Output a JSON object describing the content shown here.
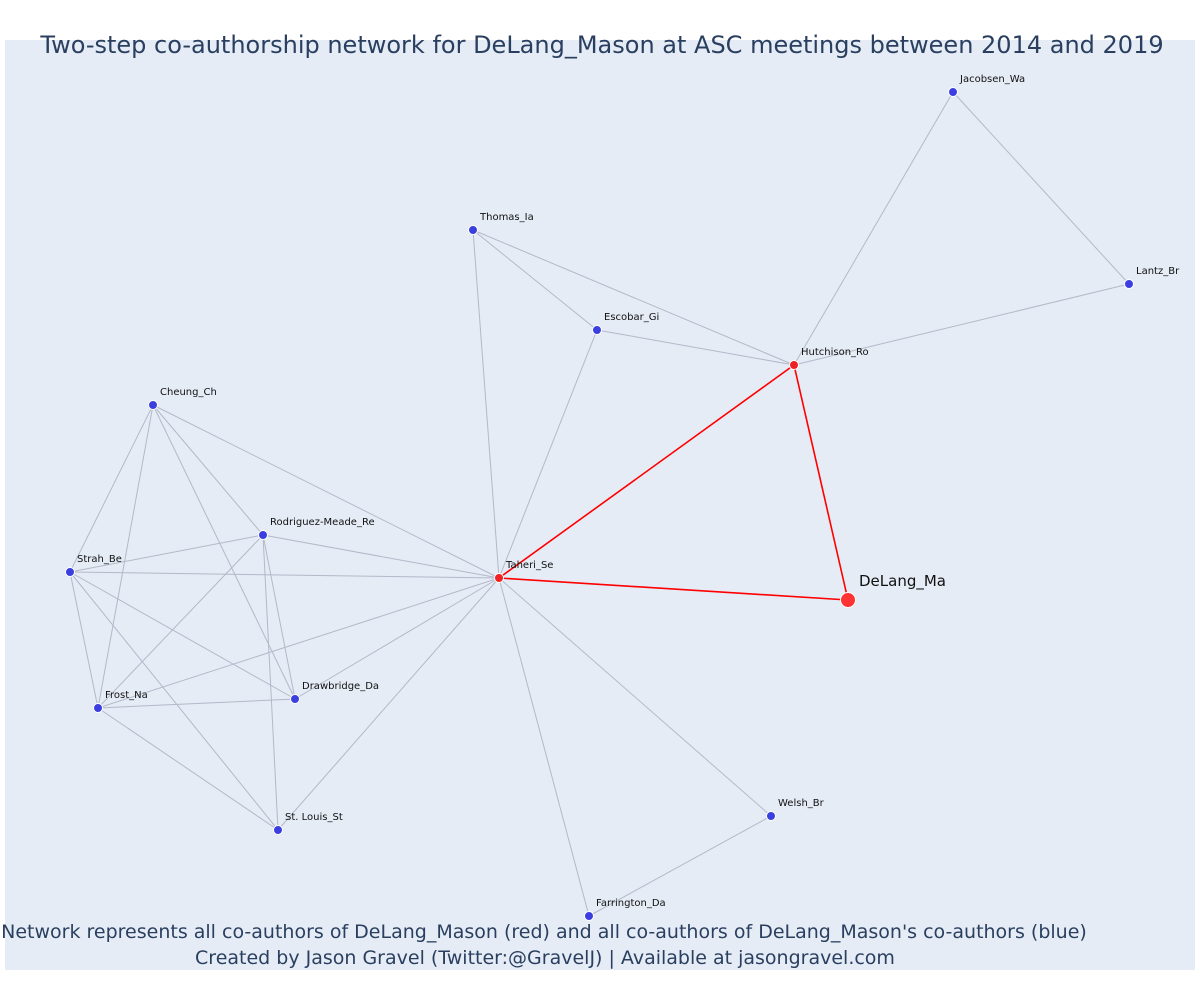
{
  "title": "Two-step co-authorship network for DeLang_Mason at ASC meetings between 2014 and 2019",
  "caption_line1": "Network represents all co-authors of DeLang_Mason (red) and all co-authors of DeLang_Mason's co-authors (blue)",
  "caption_line2": "Created by Jason Gravel (Twitter:@GravelJ) | Available at jasongravel.com",
  "colors": {
    "background": "#e5ecf6",
    "focus_node": "#ff3333",
    "direct_coauthor_node": "#ee2222",
    "indirect_coauthor_node": "#3b3fe0",
    "focus_edge": "#ff0000",
    "other_edge": "#b4b8c8",
    "text": "#2a3f5f"
  },
  "nodes": [
    {
      "id": "DeLang_Ma",
      "label": "DeLang_Ma",
      "group": "focus"
    },
    {
      "id": "Taheri_Se",
      "label": "Taheri_Se",
      "group": "coauthor"
    },
    {
      "id": "Hutchison_Ro",
      "label": "Hutchison_Ro",
      "group": "coauthor"
    },
    {
      "id": "Jacobsen_Wa",
      "label": "Jacobsen_Wa",
      "group": "second"
    },
    {
      "id": "Lantz_Br",
      "label": "Lantz_Br",
      "group": "second"
    },
    {
      "id": "Thomas_Ia",
      "label": "Thomas_Ia",
      "group": "second"
    },
    {
      "id": "Escobar_Gi",
      "label": "Escobar_Gi",
      "group": "second"
    },
    {
      "id": "Cheung_Ch",
      "label": "Cheung_Ch",
      "group": "second"
    },
    {
      "id": "Rodriguez-Meade_Re",
      "label": "Rodriguez-Meade_Re",
      "group": "second"
    },
    {
      "id": "Strah_Be",
      "label": "Strah_Be",
      "group": "second"
    },
    {
      "id": "Frost_Na",
      "label": "Frost_Na",
      "group": "second"
    },
    {
      "id": "Drawbridge_Da",
      "label": "Drawbridge_Da",
      "group": "second"
    },
    {
      "id": "St. Louis_St",
      "label": "St. Louis_St",
      "group": "second"
    },
    {
      "id": "Welsh_Br",
      "label": "Welsh_Br",
      "group": "second"
    },
    {
      "id": "Farrington_Da",
      "label": "Farrington_Da",
      "group": "second"
    }
  ],
  "edges": [
    {
      "source": "Taheri_Se",
      "target": "DeLang_Ma",
      "kind": "focus"
    },
    {
      "source": "Taheri_Se",
      "target": "Hutchison_Ro",
      "kind": "focus"
    },
    {
      "source": "Hutchison_Ro",
      "target": "DeLang_Ma",
      "kind": "focus"
    },
    {
      "source": "Hutchison_Ro",
      "target": "Jacobsen_Wa",
      "kind": "other"
    },
    {
      "source": "Jacobsen_Wa",
      "target": "Lantz_Br",
      "kind": "other"
    },
    {
      "source": "Hutchison_Ro",
      "target": "Lantz_Br",
      "kind": "other"
    },
    {
      "source": "Thomas_Ia",
      "target": "Escobar_Gi",
      "kind": "other"
    },
    {
      "source": "Thomas_Ia",
      "target": "Hutchison_Ro",
      "kind": "other"
    },
    {
      "source": "Thomas_Ia",
      "target": "Taheri_Se",
      "kind": "other"
    },
    {
      "source": "Escobar_Gi",
      "target": "Hutchison_Ro",
      "kind": "other"
    },
    {
      "source": "Escobar_Gi",
      "target": "Taheri_Se",
      "kind": "other"
    },
    {
      "source": "Cheung_Ch",
      "target": "Taheri_Se",
      "kind": "other"
    },
    {
      "source": "Cheung_Ch",
      "target": "Strah_Be",
      "kind": "other"
    },
    {
      "source": "Cheung_Ch",
      "target": "Frost_Na",
      "kind": "other"
    },
    {
      "source": "Cheung_Ch",
      "target": "Rodriguez-Meade_Re",
      "kind": "other"
    },
    {
      "source": "Cheung_Ch",
      "target": "Drawbridge_Da",
      "kind": "other"
    },
    {
      "source": "Rodriguez-Meade_Re",
      "target": "Taheri_Se",
      "kind": "other"
    },
    {
      "source": "Rodriguez-Meade_Re",
      "target": "Strah_Be",
      "kind": "other"
    },
    {
      "source": "Rodriguez-Meade_Re",
      "target": "Frost_Na",
      "kind": "other"
    },
    {
      "source": "Rodriguez-Meade_Re",
      "target": "Drawbridge_Da",
      "kind": "other"
    },
    {
      "source": "Rodriguez-Meade_Re",
      "target": "St. Louis_St",
      "kind": "other"
    },
    {
      "source": "Strah_Be",
      "target": "Taheri_Se",
      "kind": "other"
    },
    {
      "source": "Strah_Be",
      "target": "Frost_Na",
      "kind": "other"
    },
    {
      "source": "Strah_Be",
      "target": "Drawbridge_Da",
      "kind": "other"
    },
    {
      "source": "Strah_Be",
      "target": "St. Louis_St",
      "kind": "other"
    },
    {
      "source": "Frost_Na",
      "target": "Taheri_Se",
      "kind": "other"
    },
    {
      "source": "Frost_Na",
      "target": "Drawbridge_Da",
      "kind": "other"
    },
    {
      "source": "Frost_Na",
      "target": "St. Louis_St",
      "kind": "other"
    },
    {
      "source": "Drawbridge_Da",
      "target": "Taheri_Se",
      "kind": "other"
    },
    {
      "source": "St. Louis_St",
      "target": "Taheri_Se",
      "kind": "other"
    },
    {
      "source": "Taheri_Se",
      "target": "Welsh_Br",
      "kind": "other"
    },
    {
      "source": "Taheri_Se",
      "target": "Farrington_Da",
      "kind": "other"
    },
    {
      "source": "Welsh_Br",
      "target": "Farrington_Da",
      "kind": "other"
    }
  ]
}
